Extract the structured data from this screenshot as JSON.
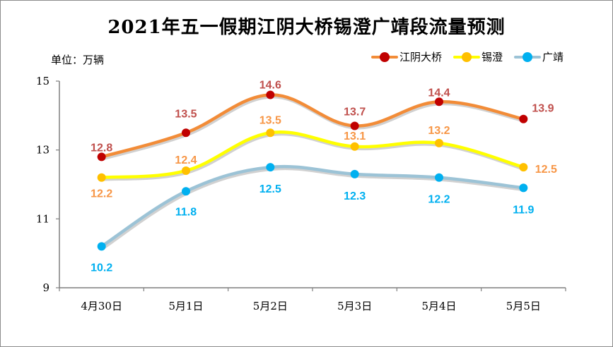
{
  "chart_data": {
    "type": "line",
    "title": "2021年五一假期江阴大桥锡澄广靖段流量预测",
    "unit_label": "单位：万辆",
    "categories": [
      "4月30日",
      "5月1日",
      "5月2日",
      "5月3日",
      "5月4日",
      "5月5日"
    ],
    "ylim": [
      9,
      15
    ],
    "yticks": [
      9,
      11,
      13,
      15
    ],
    "grid": false,
    "legend_position": "top-right",
    "series": [
      {
        "name": "江阴大桥",
        "values": [
          12.8,
          13.5,
          14.6,
          13.7,
          14.4,
          13.9
        ],
        "line_color": "#f28c38",
        "marker_color": "#c00000",
        "label_color": "#c0504d"
      },
      {
        "name": "锡澄",
        "values": [
          12.2,
          12.4,
          13.5,
          13.1,
          13.2,
          12.5
        ],
        "line_color": "#ffff00",
        "marker_color": "#ffc000",
        "label_color": "#f79646"
      },
      {
        "name": "广靖",
        "values": [
          10.2,
          11.8,
          12.5,
          12.3,
          12.2,
          11.9
        ],
        "line_color": "#9cc3d6",
        "marker_color": "#00b0f0",
        "label_color": "#00b0f0"
      }
    ]
  }
}
